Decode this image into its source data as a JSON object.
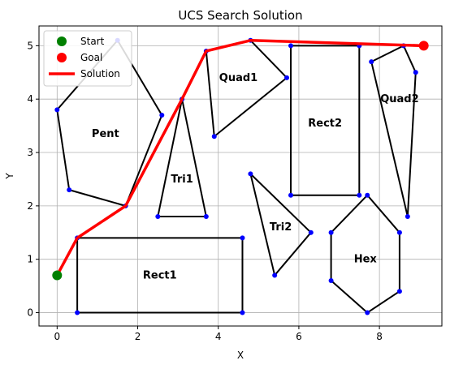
{
  "chart_data": {
    "type": "line",
    "title": "UCS Search Solution",
    "xlabel": "X",
    "ylabel": "Y",
    "xlim": [
      -0.45,
      9.55
    ],
    "ylim": [
      -0.25,
      5.37
    ],
    "xticks": [
      0,
      2,
      4,
      6,
      8
    ],
    "yticks": [
      0,
      1,
      2,
      3,
      4,
      5
    ],
    "grid": true,
    "legend_position": "top-left",
    "colors": {
      "obstacle_edge": "#000000",
      "vertex": "#0000ff",
      "start": "#008000",
      "goal": "#ff0000",
      "solution": "#ff0000",
      "grid": "#b0b0b0"
    },
    "legend": [
      {
        "label": "Start",
        "kind": "marker",
        "color": "#008000"
      },
      {
        "label": "Goal",
        "kind": "marker",
        "color": "#ff0000"
      },
      {
        "label": "Solution",
        "kind": "line",
        "color": "#ff0000"
      }
    ],
    "start": [
      0,
      0.7
    ],
    "goal": [
      9.1,
      5.0
    ],
    "solution_path": [
      [
        0,
        0.7
      ],
      [
        0.5,
        1.4
      ],
      [
        1.7,
        2.0
      ],
      [
        3.1,
        4.0
      ],
      [
        3.7,
        4.9
      ],
      [
        4.8,
        5.1
      ],
      [
        9.1,
        5.0
      ]
    ],
    "obstacles": [
      {
        "name": "Pent",
        "label_at": [
          1.2,
          3.35
        ],
        "points": [
          [
            0,
            3.8
          ],
          [
            1.5,
            5.1
          ],
          [
            2.6,
            3.7
          ],
          [
            1.7,
            2.0
          ],
          [
            0.3,
            2.3
          ]
        ]
      },
      {
        "name": "Tri1",
        "label_at": [
          3.1,
          2.5
        ],
        "points": [
          [
            3.1,
            4.0
          ],
          [
            3.7,
            1.8
          ],
          [
            2.5,
            1.8
          ]
        ]
      },
      {
        "name": "Quad1",
        "label_at": [
          4.5,
          4.4
        ],
        "points": [
          [
            3.7,
            4.9
          ],
          [
            4.8,
            5.1
          ],
          [
            5.7,
            4.4
          ],
          [
            3.9,
            3.3
          ]
        ]
      },
      {
        "name": "Rect2",
        "label_at": [
          6.65,
          3.55
        ],
        "points": [
          [
            5.8,
            5.0
          ],
          [
            7.5,
            5.0
          ],
          [
            7.5,
            2.2
          ],
          [
            5.8,
            2.2
          ]
        ]
      },
      {
        "name": "Quad2",
        "label_at": [
          8.5,
          4.0
        ],
        "points": [
          [
            7.8,
            4.7
          ],
          [
            8.6,
            5.0
          ],
          [
            8.9,
            4.5
          ],
          [
            8.7,
            1.8
          ]
        ]
      },
      {
        "name": "Tri2",
        "label_at": [
          5.55,
          1.6
        ],
        "points": [
          [
            4.8,
            2.6
          ],
          [
            6.3,
            1.5
          ],
          [
            5.4,
            0.7
          ]
        ]
      },
      {
        "name": "Hex",
        "label_at": [
          7.65,
          1.0
        ],
        "points": [
          [
            7.7,
            2.2
          ],
          [
            8.5,
            1.5
          ],
          [
            8.5,
            0.4
          ],
          [
            7.7,
            0.0
          ],
          [
            6.8,
            0.6
          ],
          [
            6.8,
            1.5
          ]
        ]
      },
      {
        "name": "Rect1",
        "label_at": [
          2.55,
          0.7
        ],
        "points": [
          [
            0.5,
            1.4
          ],
          [
            4.6,
            1.4
          ],
          [
            4.6,
            0.0
          ],
          [
            0.5,
            0.0
          ]
        ]
      }
    ]
  }
}
